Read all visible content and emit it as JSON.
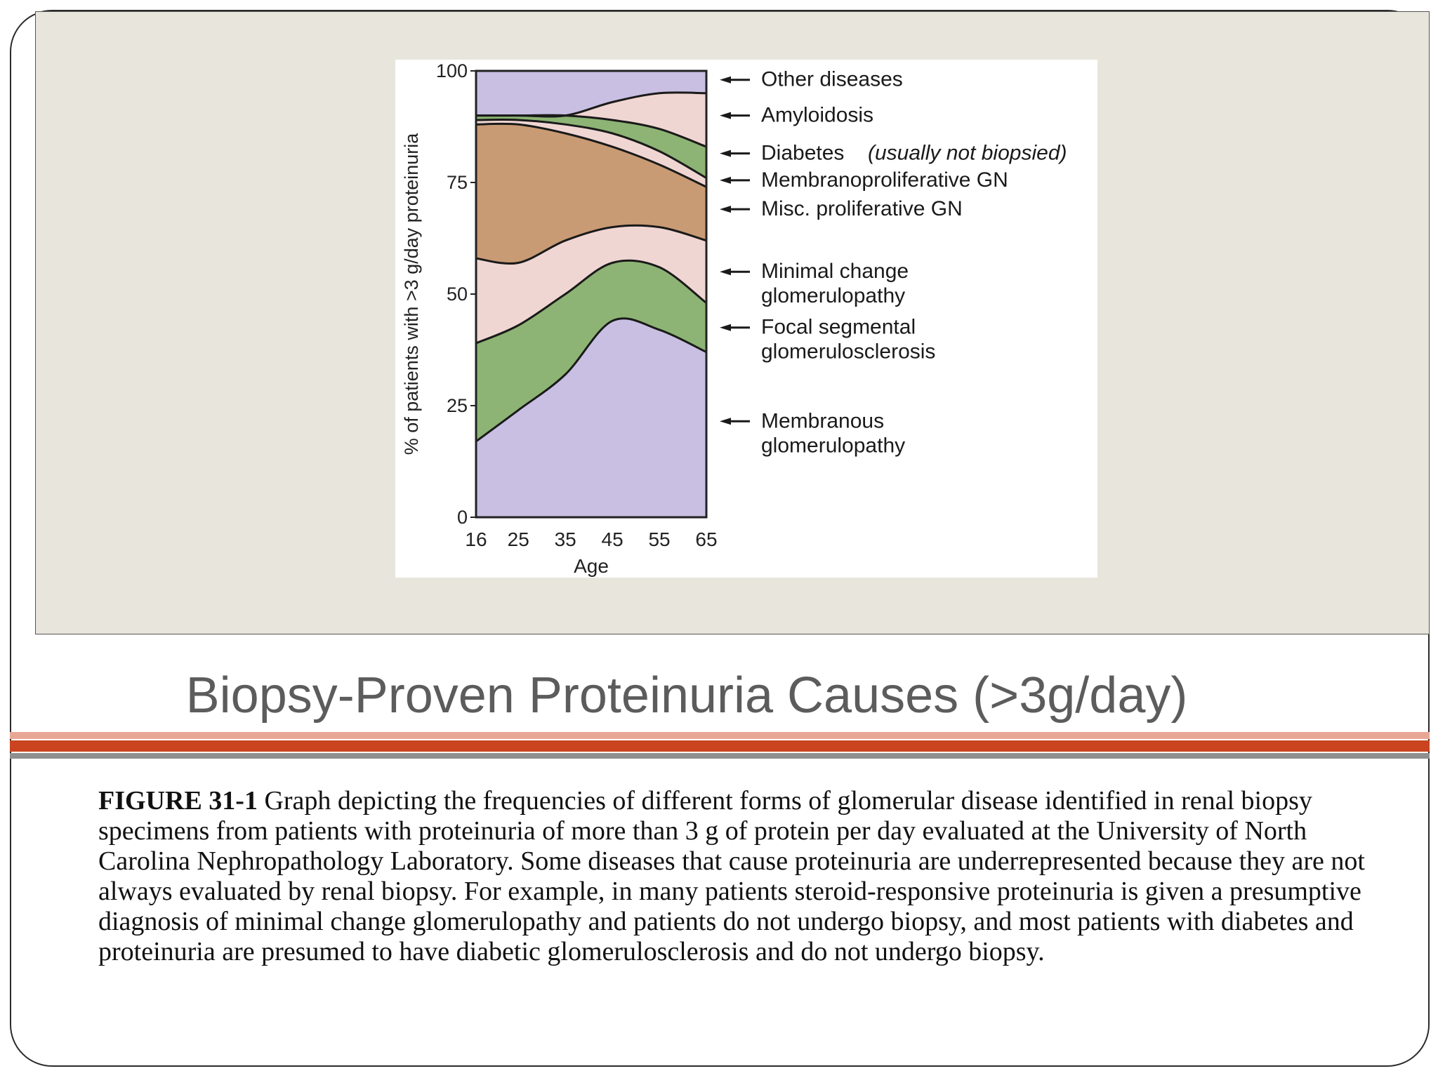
{
  "slide": {
    "title": "Biopsy-Proven Proteinuria Causes (>3g/day)",
    "caption_label": "FIGURE 31-1",
    "caption_text": " Graph depicting the frequencies of different forms of glomerular disease identified in renal biopsy specimens from patients with proteinuria of more than 3 g of protein per day evaluated at the University of North Carolina Nephropathology Laboratory. Some diseases that cause proteinuria are underrepresented because they are not always evaluated by renal biopsy. For example, in many patients steroid-responsive proteinuria is given a presumptive diagnosis of minimal change glomerulopathy and patients do not undergo biopsy, and most patients with diabetes and proteinuria are presumed to have diabetic glomerulosclerosis and do not undergo biopsy."
  },
  "chart_data": {
    "type": "area",
    "stacked": true,
    "xlabel": "Age",
    "ylabel": "% of patients with >3 g/day proteinuria",
    "x": [
      16,
      25,
      35,
      45,
      55,
      65
    ],
    "xlim": [
      16,
      65
    ],
    "ylim": [
      0,
      100
    ],
    "yticks": [
      0,
      25,
      50,
      75,
      100
    ],
    "grid": false,
    "legend": "right",
    "series": [
      {
        "name": "Membranous glomerulopathy",
        "color": "#c8bfe3",
        "cumulative": [
          17,
          24,
          32,
          44,
          42,
          37
        ]
      },
      {
        "name": "Focal segmental glomerulosclerosis",
        "color": "#8db474",
        "cumulative": [
          39,
          43,
          50,
          57,
          56,
          48
        ]
      },
      {
        "name": "Minimal change glomerulopathy",
        "color": "#f0d6d2",
        "cumulative": [
          58,
          57,
          62,
          65,
          65,
          62
        ]
      },
      {
        "name": "Misc. proliferative GN",
        "color": "#c99b74",
        "cumulative": [
          88,
          88,
          86,
          83,
          79,
          74
        ]
      },
      {
        "name": "Membranoproliferative GN",
        "color": "#f0d6d2",
        "cumulative": [
          89,
          89,
          88,
          86,
          82,
          76
        ]
      },
      {
        "name": "Diabetes",
        "name_note": "(usually not biopsied)",
        "color": "#8db474",
        "cumulative": [
          90,
          90,
          90,
          89,
          87,
          83
        ]
      },
      {
        "name": "Amyloidosis",
        "color": "#f0d6d2",
        "cumulative": [
          90,
          90,
          90,
          93,
          95,
          95
        ]
      },
      {
        "name": "Other diseases",
        "color": "#c8bfe3",
        "cumulative": [
          100,
          100,
          100,
          100,
          100,
          100
        ]
      }
    ],
    "legend_lines": [
      {
        "series": "Other diseases",
        "lines": [
          "Other diseases"
        ],
        "value": 98
      },
      {
        "series": "Amyloidosis",
        "lines": [
          "Amyloidosis"
        ],
        "value": 90
      },
      {
        "series": "Diabetes",
        "lines": [
          "Diabetes",
          "(usually not biopsied)"
        ],
        "value": 81.5
      },
      {
        "series": "Membranoproliferative GN",
        "lines": [
          "Membranoproliferative GN"
        ],
        "value": 75.5
      },
      {
        "series": "Misc. proliferative GN",
        "lines": [
          "Misc. proliferative GN"
        ],
        "value": 69
      },
      {
        "series": "Minimal change glomerulopathy",
        "lines": [
          "Minimal change",
          "glomerulopathy"
        ],
        "value": 55
      },
      {
        "series": "Focal segmental glomerulosclerosis",
        "lines": [
          "Focal segmental",
          "glomerulosclerosis"
        ],
        "value": 42.5
      },
      {
        "series": "Membranous glomerulopathy",
        "lines": [
          "Membranous",
          "glomerulopathy"
        ],
        "value": 21.5
      }
    ]
  }
}
